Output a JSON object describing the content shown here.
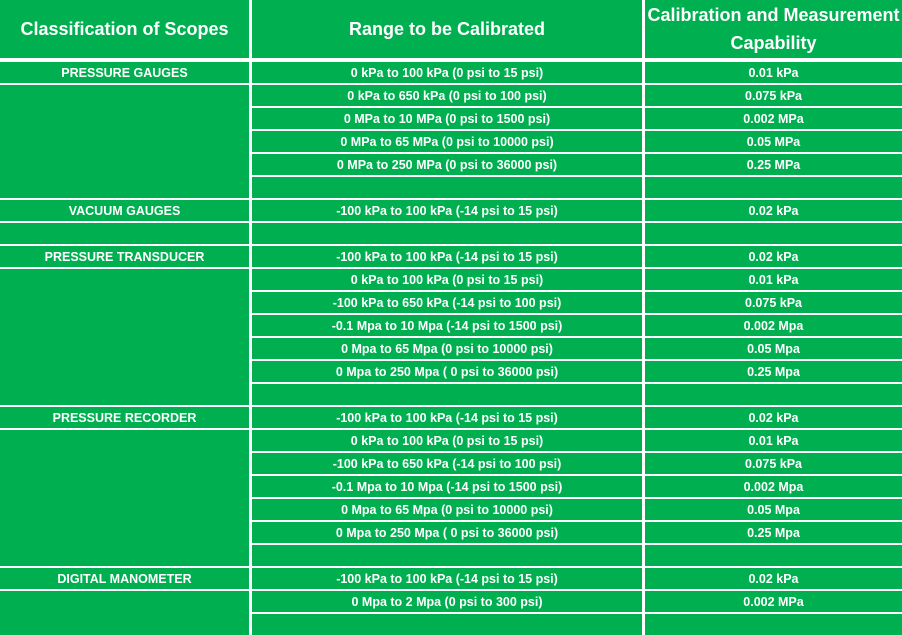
{
  "colors": {
    "cell_fill": "#00b050",
    "grid_line": "#ffffff",
    "text": "#ffffff"
  },
  "header": {
    "classification": "Classification of Scopes",
    "range": "Range to be Calibrated",
    "cmc": "Calibration and Measurement Capability"
  },
  "rows": [
    {
      "scope": "PRESSURE GAUGES",
      "range": "0 kPa to 100 kPa (0 psi to 15 psi)",
      "cmc": "0.01 kPa"
    },
    {
      "scope": "",
      "range": "0 kPa to 650 kPa (0 psi to 100 psi)",
      "cmc": "0.075 kPa"
    },
    {
      "scope": "",
      "range": "0 MPa to 10 MPa (0 psi to 1500 psi)",
      "cmc": "0.002 MPa"
    },
    {
      "scope": "",
      "range": "0 MPa to 65 MPa (0 psi to 10000 psi)",
      "cmc": "0.05 MPa"
    },
    {
      "scope": "",
      "range": "0 MPa to 250 MPa (0 psi to 36000 psi)",
      "cmc": "0.25 MPa"
    },
    {
      "scope": "",
      "range": "",
      "cmc": ""
    },
    {
      "scope": "VACUUM GAUGES",
      "range": "-100 kPa to 100 kPa (-14 psi to 15 psi)",
      "cmc": "0.02 kPa"
    },
    {
      "scope": "",
      "range": "",
      "cmc": ""
    },
    {
      "scope": "PRESSURE TRANSDUCER",
      "range": "-100 kPa to 100 kPa (-14 psi to 15 psi)",
      "cmc": "0.02 kPa"
    },
    {
      "scope": "",
      "range": "0 kPa to 100 kPa (0 psi to 15 psi)",
      "cmc": "0.01 kPa"
    },
    {
      "scope": "",
      "range": "-100 kPa to 650 kPa (-14 psi to 100 psi)",
      "cmc": "0.075 kPa"
    },
    {
      "scope": "",
      "range": "-0.1 Mpa to 10 Mpa  (-14 psi to 1500 psi)",
      "cmc": "0.002 Mpa"
    },
    {
      "scope": "",
      "range": "0 Mpa to 65 Mpa (0 psi to 10000 psi)",
      "cmc": "0.05 Mpa"
    },
    {
      "scope": "",
      "range": "0 Mpa to 250 Mpa ( 0 psi to 36000 psi)",
      "cmc": "0.25 Mpa"
    },
    {
      "scope": "",
      "range": "",
      "cmc": ""
    },
    {
      "scope": "PRESSURE RECORDER",
      "range": "-100 kPa to 100 kPa (-14 psi to 15 psi)",
      "cmc": "0.02 kPa"
    },
    {
      "scope": "",
      "range": "0 kPa to 100 kPa (0 psi to 15 psi)",
      "cmc": "0.01 kPa"
    },
    {
      "scope": "",
      "range": "-100 kPa to 650 kPa (-14 psi to 100 psi)",
      "cmc": "0.075 kPa"
    },
    {
      "scope": "",
      "range": "-0.1 Mpa to 10 Mpa  (-14 psi to 1500 psi)",
      "cmc": "0.002 Mpa"
    },
    {
      "scope": "",
      "range": "0 Mpa to 65 Mpa (0 psi to 10000 psi)",
      "cmc": "0.05 Mpa"
    },
    {
      "scope": "",
      "range": "0 Mpa to 250 Mpa ( 0 psi to 36000 psi)",
      "cmc": "0.25 Mpa"
    },
    {
      "scope": "",
      "range": "",
      "cmc": ""
    },
    {
      "scope": "DIGITAL MANOMETER",
      "range": "-100 kPa to 100 kPa (-14 psi to 15 psi)",
      "cmc": "0.02 kPa"
    },
    {
      "scope": "",
      "range": "0 Mpa to 2 Mpa (0 psi to 300 psi)",
      "cmc": "0.002 MPa"
    },
    {
      "scope": "",
      "range": "",
      "cmc": ""
    }
  ]
}
